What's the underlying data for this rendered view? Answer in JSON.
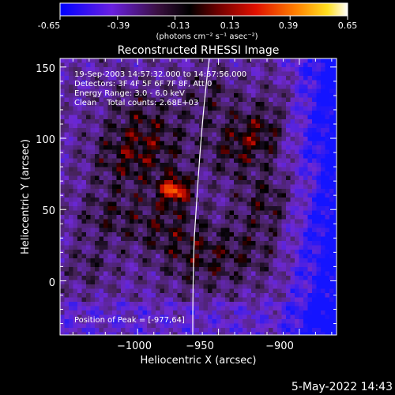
{
  "colorbar": {
    "ticks": [
      "-0.65",
      "-0.39",
      "-0.13",
      "0.13",
      "0.39",
      "0.65"
    ],
    "units": "(photons cm⁻² s⁻¹ asec⁻²)"
  },
  "title": "Reconstructed RHESSI Image",
  "info": {
    "line1": "19-Sep-2003 14:57:32.000 to 14:57:56.000",
    "line2": "Detectors: 3F 4F 5F 6F 7F 8F, Att 0",
    "line3": "Energy Range: 3.0 - 6.0 keV",
    "line4": "Clean    Total counts: 2.68E+03"
  },
  "peak_label": "Position of Peak = [-977,64]",
  "footer_date": "5-May-2022 14:43",
  "chart_data": {
    "type": "heatmap",
    "title": "Reconstructed RHESSI Image",
    "xlabel": "Heliocentric X (arcsec)",
    "ylabel": "Heliocentric Y (arcsec)",
    "xlim": [
      -1048,
      -877
    ],
    "ylim": [
      -38,
      156
    ],
    "x_ticks": [
      -1000,
      -950,
      -900
    ],
    "y_ticks": [
      0,
      50,
      100,
      150
    ],
    "x_tick_labels": [
      "−1000",
      "−950",
      "−900"
    ],
    "y_tick_labels": [
      "0",
      "50",
      "100",
      "150"
    ],
    "colorbar_range": [
      -0.65,
      0.65
    ],
    "colormap": [
      "#1010ff",
      "#7b2fd0",
      "#3a2050",
      "#000000",
      "#8a0000",
      "#e01000",
      "#ff8000",
      "#ffe020",
      "#ffffff"
    ],
    "peak": {
      "x": -977,
      "y": 64
    },
    "limb_color": "#ffffff"
  }
}
